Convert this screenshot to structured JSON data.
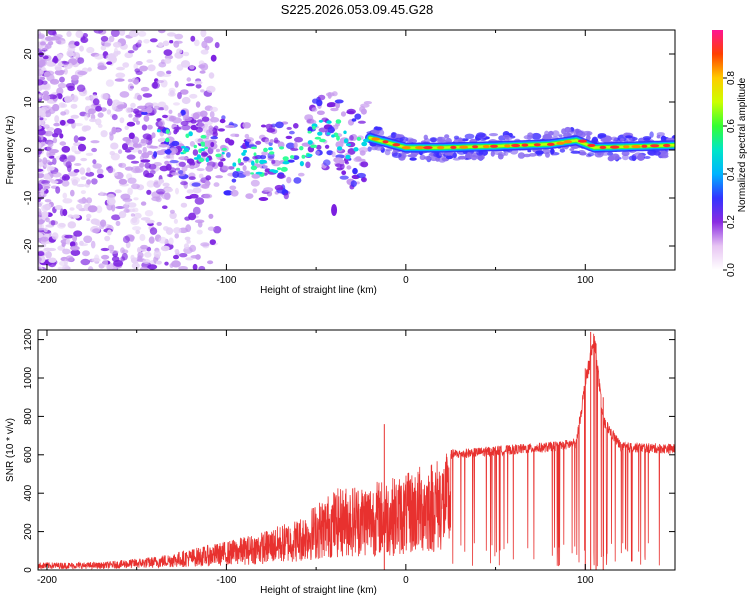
{
  "title": "S225.2026.053.09.45.G28",
  "colors": {
    "snr_line": "#e8312f",
    "axis": "#000000",
    "background": "#ffffff"
  },
  "chart_data": [
    {
      "type": "heatmap",
      "title": "S225.2026.053.09.45.G28",
      "xlabel": "Height of straight line (km)",
      "ylabel": "Frequency (Hz)",
      "xlim": [
        -205,
        150
      ],
      "ylim": [
        -25,
        25
      ],
      "xticks": [
        -200,
        -100,
        0,
        100
      ],
      "yticks": [
        -20,
        -10,
        0,
        10,
        20
      ],
      "colorbar": {
        "label": "Normalized spectral amplitude",
        "range": [
          0,
          1
        ],
        "ticks": [
          "0.0",
          "0.2",
          "0.4",
          "0.6",
          "0.8"
        ],
        "colormap": [
          "#ffffff",
          "#e7c5f3",
          "#8a2be2",
          "#3333ff",
          "#00b4ff",
          "#00e6c8",
          "#33ff33",
          "#ccff00",
          "#ffcc00",
          "#ff4000",
          "#ff1493"
        ]
      },
      "ridge": [
        {
          "x": -150,
          "y": 2.0
        },
        {
          "x": -120,
          "y": 0.5
        },
        {
          "x": -100,
          "y": -1.0
        },
        {
          "x": -85,
          "y": -2.5
        },
        {
          "x": -70,
          "y": -2.0
        },
        {
          "x": -60,
          "y": -1.0
        },
        {
          "x": -50,
          "y": 3.5
        },
        {
          "x": -40,
          "y": 4.5
        },
        {
          "x": -30,
          "y": 0.0
        },
        {
          "x": -20,
          "y": 2.5
        },
        {
          "x": 0,
          "y": 0.5
        },
        {
          "x": 20,
          "y": 0.5
        },
        {
          "x": 50,
          "y": 0.8
        },
        {
          "x": 80,
          "y": 1.2
        },
        {
          "x": 95,
          "y": 2.0
        },
        {
          "x": 105,
          "y": 0.5
        },
        {
          "x": 150,
          "y": 1.0
        }
      ]
    },
    {
      "type": "line",
      "xlabel": "Height of straight line (km)",
      "ylabel": "SNR (10 * v/v)",
      "xlim": [
        -205,
        150
      ],
      "ylim": [
        0,
        1250
      ],
      "xticks": [
        -200,
        -100,
        0,
        100
      ],
      "yticks": [
        0,
        200,
        400,
        600,
        800,
        1000,
        1200
      ],
      "envelope": [
        {
          "x": -205,
          "y": 40
        },
        {
          "x": -170,
          "y": 40
        },
        {
          "x": -140,
          "y": 70
        },
        {
          "x": -120,
          "y": 110
        },
        {
          "x": -100,
          "y": 150
        },
        {
          "x": -80,
          "y": 200
        },
        {
          "x": -60,
          "y": 270
        },
        {
          "x": -50,
          "y": 350
        },
        {
          "x": -40,
          "y": 420
        },
        {
          "x": -30,
          "y": 450
        },
        {
          "x": -20,
          "y": 460
        },
        {
          "x": -10,
          "y": 480
        },
        {
          "x": 0,
          "y": 500
        },
        {
          "x": 10,
          "y": 560
        },
        {
          "x": 25,
          "y": 620
        },
        {
          "x": 50,
          "y": 640
        },
        {
          "x": 80,
          "y": 660
        },
        {
          "x": 95,
          "y": 680
        },
        {
          "x": 100,
          "y": 1000
        },
        {
          "x": 105,
          "y": 1240
        },
        {
          "x": 110,
          "y": 800
        },
        {
          "x": 120,
          "y": 660
        },
        {
          "x": 150,
          "y": 650
        }
      ],
      "spikes": [
        {
          "x": -12,
          "y": 760
        },
        {
          "x": 103,
          "y": 1240
        },
        {
          "x": 106,
          "y": 1180
        },
        {
          "x": 100,
          "y": 1050
        },
        {
          "x": 110,
          "y": 900
        }
      ]
    }
  ]
}
